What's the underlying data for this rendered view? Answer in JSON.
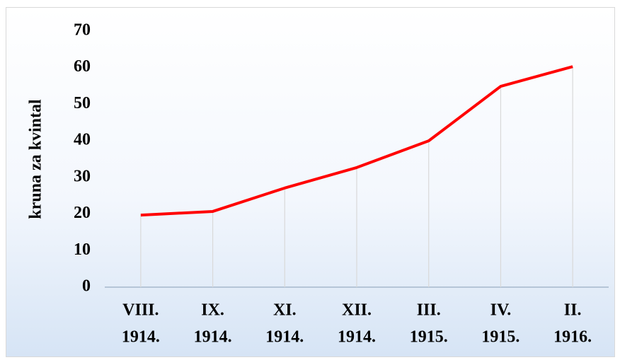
{
  "chart_data": {
    "type": "line",
    "y_label": "kruna za kvintal",
    "categories": [
      [
        "VIII.",
        "1914."
      ],
      [
        "IX.",
        "1914."
      ],
      [
        "XI.",
        "1914."
      ],
      [
        "XII.",
        "1914."
      ],
      [
        "III.",
        "1915."
      ],
      [
        "IV.",
        "1915."
      ],
      [
        "II.",
        "1916."
      ]
    ],
    "series": [
      {
        "name": null,
        "color": "#ff0000",
        "values": [
          19.7,
          20.7,
          27.1,
          32.7,
          40,
          54.9,
          60.3
        ]
      }
    ],
    "ylim": [
      0,
      70
    ],
    "yticks": [
      0,
      10,
      20,
      30,
      40,
      50,
      60,
      70
    ],
    "drop_lines": true
  }
}
